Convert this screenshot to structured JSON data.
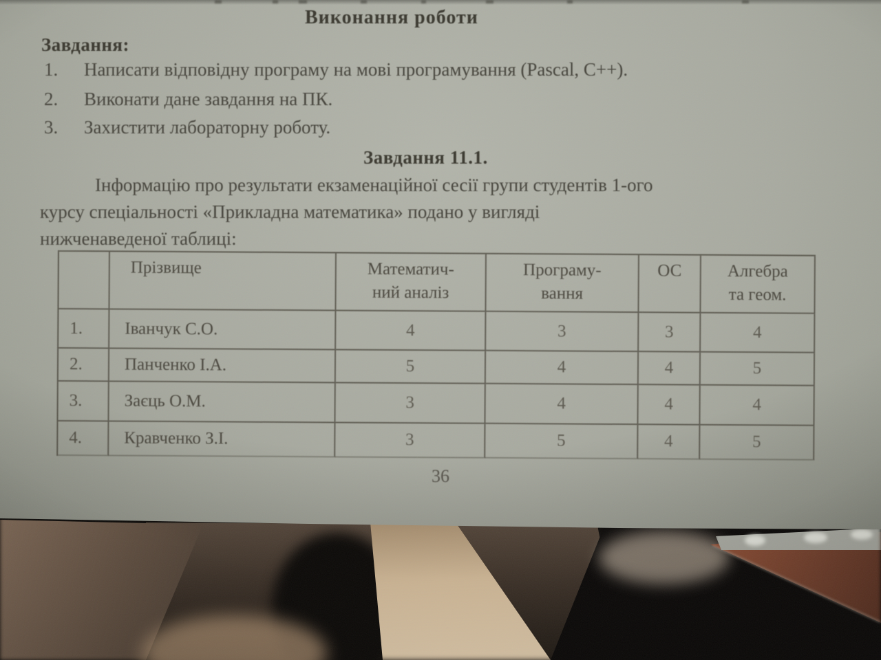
{
  "document": {
    "top_heading": "Виконання роботи",
    "tasks_label": "Завдання:",
    "tasks": [
      {
        "num": "1.",
        "text": "Написати відповідну програму на мові програмування (Pascal, C++)."
      },
      {
        "num": "2.",
        "text": "Виконати дане завдання на ПК."
      },
      {
        "num": "3.",
        "text": "Захистити лабораторну роботу."
      }
    ],
    "section_heading": "Завдання 11.1.",
    "paragraph_lines": [
      "Інформацію про результати екзаменаційної сесії групи студентів 1-ого",
      "курсу спеціальності «Прикладна математика» подано у вигляді",
      "нижченаведеної таблиці:"
    ],
    "page_number": "36"
  },
  "table": {
    "columns": [
      "",
      "Прізвище",
      "Математич-\nний аналіз",
      "Програму-\nвання",
      "ОС",
      "Алгебра\nта геом."
    ],
    "rows": [
      [
        "1.",
        "Іванчук С.О.",
        "4",
        "3",
        "3",
        "4"
      ],
      [
        "2.",
        "Панченко І.А.",
        "5",
        "4",
        "4",
        "5"
      ],
      [
        "3.",
        "Заєць О.М.",
        "3",
        "4",
        "4",
        "4"
      ],
      [
        "4.",
        "Кравченко З.І.",
        "3",
        "5",
        "4",
        "5"
      ]
    ]
  },
  "colors": {
    "page_background": "#a8aaa0",
    "ink": "#45433b",
    "table_border": "#464238",
    "floor": "#6e3d2a",
    "skin": "#c9b292",
    "wood_wedge": "#5d4c3e"
  }
}
